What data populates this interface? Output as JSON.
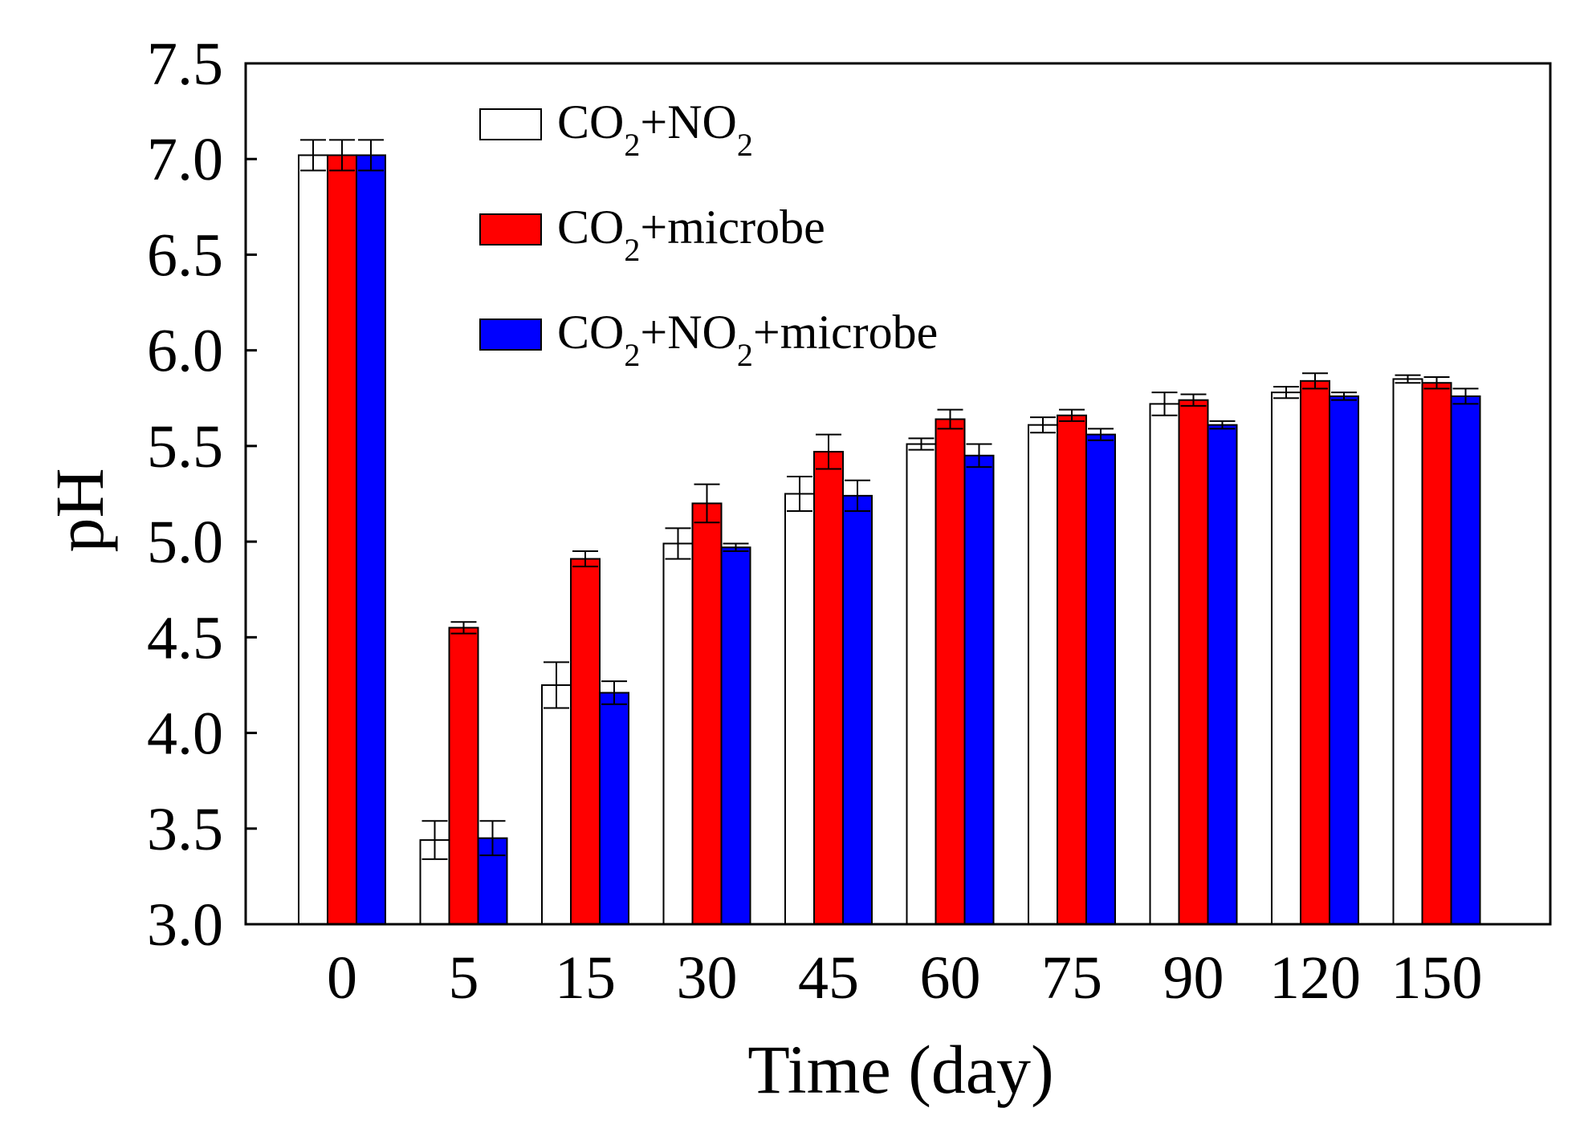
{
  "chart_data": {
    "type": "bar",
    "title": "",
    "xlabel": "Time (day)",
    "ylabel": "pH",
    "ylim": [
      3.0,
      7.5
    ],
    "yticks": [
      "3.0",
      "3.5",
      "4.0",
      "4.5",
      "5.0",
      "5.5",
      "6.0",
      "6.5",
      "7.0",
      "7.5"
    ],
    "categories": [
      "0",
      "5",
      "15",
      "30",
      "45",
      "60",
      "75",
      "90",
      "120",
      "150"
    ],
    "legend_position": "top-center",
    "series": [
      {
        "name": "CO2+NO2",
        "legend": {
          "a": "CO",
          "a_sub": "2",
          "b": "+NO",
          "b_sub": "2"
        },
        "color": "#ffffff",
        "values": [
          7.02,
          3.44,
          4.25,
          4.99,
          5.25,
          5.51,
          5.61,
          5.72,
          5.78,
          5.85
        ],
        "errors": [
          0.08,
          0.1,
          0.12,
          0.08,
          0.09,
          0.03,
          0.04,
          0.06,
          0.03,
          0.02
        ]
      },
      {
        "name": "CO2+microbe",
        "legend": {
          "a": "CO",
          "a_sub": "2",
          "b": "+microbe"
        },
        "color": "#ff0000",
        "values": [
          7.02,
          4.55,
          4.91,
          5.2,
          5.47,
          5.64,
          5.66,
          5.74,
          5.84,
          5.83
        ],
        "errors": [
          0.08,
          0.03,
          0.04,
          0.1,
          0.09,
          0.05,
          0.03,
          0.03,
          0.04,
          0.03
        ]
      },
      {
        "name": "CO2+NO2+microbe",
        "legend": {
          "a": "CO",
          "a_sub": "2",
          "b": "+NO",
          "b_sub": "2",
          "c": "+microbe"
        },
        "color": "#0000ff",
        "values": [
          7.02,
          3.45,
          4.21,
          4.97,
          5.24,
          5.45,
          5.56,
          5.61,
          5.76,
          5.76
        ],
        "errors": [
          0.08,
          0.09,
          0.06,
          0.02,
          0.08,
          0.06,
          0.03,
          0.02,
          0.02,
          0.04
        ]
      }
    ]
  }
}
